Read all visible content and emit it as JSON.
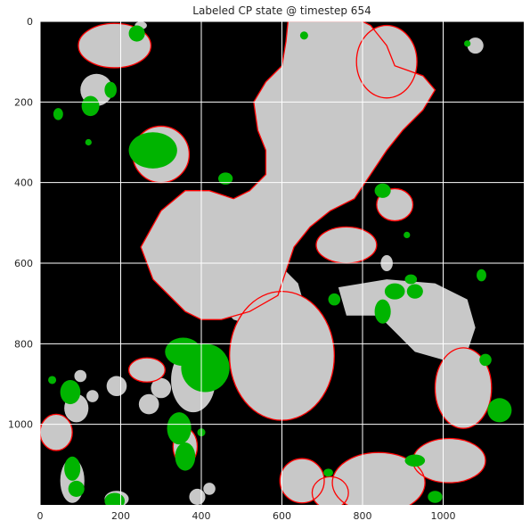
{
  "chart_data": {
    "type": "heatmap",
    "title": "Labeled CP state @ timestep 654",
    "xlabel": "",
    "ylabel": "",
    "xlim": [
      0,
      1200
    ],
    "ylim": [
      1200,
      0
    ],
    "y_inverted": true,
    "grid": true,
    "legend": "none",
    "x_ticks": [
      0,
      200,
      400,
      600,
      800,
      1000
    ],
    "y_ticks": [
      0,
      200,
      400,
      600,
      800,
      1000
    ],
    "classes": [
      {
        "name": "background",
        "color": "#000000"
      },
      {
        "name": "cold pool interior",
        "color": "#c8c8c8"
      },
      {
        "name": "cold pool boundary",
        "color": "#ff0000"
      },
      {
        "name": "new cold pool",
        "color": "#00b400"
      }
    ],
    "regions": [
      {
        "class": 1,
        "type": "poly",
        "points": [
          [
            615,
            0
          ],
          [
            800,
            0
          ],
          [
            820,
            10
          ],
          [
            860,
            60
          ],
          [
            880,
            110
          ],
          [
            950,
            135
          ],
          [
            980,
            170
          ],
          [
            950,
            220
          ],
          [
            900,
            270
          ],
          [
            860,
            320
          ],
          [
            820,
            380
          ],
          [
            780,
            440
          ],
          [
            720,
            470
          ],
          [
            670,
            510
          ],
          [
            630,
            560
          ],
          [
            610,
            620
          ],
          [
            590,
            680
          ],
          [
            520,
            720
          ],
          [
            450,
            740
          ],
          [
            400,
            740
          ],
          [
            360,
            720
          ],
          [
            280,
            640
          ],
          [
            250,
            560
          ],
          [
            300,
            470
          ],
          [
            360,
            420
          ],
          [
            420,
            420
          ],
          [
            480,
            440
          ],
          [
            520,
            420
          ],
          [
            560,
            380
          ],
          [
            560,
            320
          ],
          [
            540,
            270
          ],
          [
            530,
            200
          ],
          [
            560,
            150
          ],
          [
            600,
            110
          ],
          [
            610,
            50
          ]
        ]
      },
      {
        "class": 1,
        "type": "ellipse",
        "cx": 600,
        "cy": 830,
        "rx": 130,
        "ry": 160
      },
      {
        "class": 1,
        "type": "poly",
        "points": [
          [
            470,
            620
          ],
          [
            520,
            600
          ],
          [
            600,
            610
          ],
          [
            640,
            650
          ],
          [
            660,
            720
          ],
          [
            620,
            760
          ],
          [
            540,
            760
          ],
          [
            480,
            740
          ],
          [
            440,
            700
          ]
        ]
      },
      {
        "class": 1,
        "type": "poly",
        "points": [
          [
            740,
            660
          ],
          [
            860,
            640
          ],
          [
            980,
            650
          ],
          [
            1060,
            690
          ],
          [
            1080,
            760
          ],
          [
            1060,
            820
          ],
          [
            1000,
            840
          ],
          [
            930,
            820
          ],
          [
            880,
            770
          ],
          [
            840,
            730
          ],
          [
            760,
            730
          ]
        ]
      },
      {
        "class": 1,
        "type": "ellipse",
        "cx": 1050,
        "cy": 910,
        "rx": 70,
        "ry": 100
      },
      {
        "class": 1,
        "type": "ellipse",
        "cx": 860,
        "cy": 100,
        "rx": 75,
        "ry": 90
      },
      {
        "class": 1,
        "type": "ellipse",
        "cx": 760,
        "cy": 555,
        "rx": 75,
        "ry": 45
      },
      {
        "class": 1,
        "type": "ellipse",
        "cx": 880,
        "cy": 455,
        "rx": 45,
        "ry": 40
      },
      {
        "class": 1,
        "type": "ellipse",
        "cx": 300,
        "cy": 330,
        "rx": 70,
        "ry": 70
      },
      {
        "class": 1,
        "type": "ellipse",
        "cx": 185,
        "cy": 60,
        "rx": 90,
        "ry": 55
      },
      {
        "class": 1,
        "type": "ellipse",
        "cx": 140,
        "cy": 170,
        "rx": 40,
        "ry": 40
      },
      {
        "class": 1,
        "type": "ellipse",
        "cx": 1015,
        "cy": 1090,
        "rx": 90,
        "ry": 55
      },
      {
        "class": 1,
        "type": "ellipse",
        "cx": 840,
        "cy": 1145,
        "rx": 115,
        "ry": 75
      },
      {
        "class": 1,
        "type": "ellipse",
        "cx": 650,
        "cy": 1140,
        "rx": 55,
        "ry": 55
      },
      {
        "class": 1,
        "type": "ellipse",
        "cx": 720,
        "cy": 1170,
        "rx": 45,
        "ry": 40
      },
      {
        "class": 1,
        "type": "ellipse",
        "cx": 380,
        "cy": 890,
        "rx": 55,
        "ry": 80
      },
      {
        "class": 1,
        "type": "ellipse",
        "cx": 265,
        "cy": 865,
        "rx": 45,
        "ry": 30
      },
      {
        "class": 1,
        "type": "ellipse",
        "cx": 300,
        "cy": 910,
        "rx": 25,
        "ry": 25
      },
      {
        "class": 1,
        "type": "ellipse",
        "cx": 190,
        "cy": 905,
        "rx": 25,
        "ry": 25
      },
      {
        "class": 1,
        "type": "ellipse",
        "cx": 270,
        "cy": 950,
        "rx": 25,
        "ry": 25
      },
      {
        "class": 1,
        "type": "ellipse",
        "cx": 360,
        "cy": 1055,
        "rx": 30,
        "ry": 45
      },
      {
        "class": 1,
        "type": "ellipse",
        "cx": 40,
        "cy": 1020,
        "rx": 40,
        "ry": 45
      },
      {
        "class": 1,
        "type": "ellipse",
        "cx": 90,
        "cy": 960,
        "rx": 30,
        "ry": 35
      },
      {
        "class": 1,
        "type": "ellipse",
        "cx": 80,
        "cy": 1140,
        "rx": 30,
        "ry": 55
      },
      {
        "class": 1,
        "type": "ellipse",
        "cx": 190,
        "cy": 1185,
        "rx": 30,
        "ry": 20
      },
      {
        "class": 1,
        "type": "ellipse",
        "cx": 390,
        "cy": 1180,
        "rx": 20,
        "ry": 20
      },
      {
        "class": 1,
        "type": "ellipse",
        "cx": 420,
        "cy": 1160,
        "rx": 15,
        "ry": 15
      },
      {
        "class": 1,
        "type": "ellipse",
        "cx": 860,
        "cy": 600,
        "rx": 15,
        "ry": 20
      },
      {
        "class": 1,
        "type": "ellipse",
        "cx": 1080,
        "cy": 60,
        "rx": 20,
        "ry": 20
      },
      {
        "class": 1,
        "type": "ellipse",
        "cx": 250,
        "cy": 10,
        "rx": 15,
        "ry": 10
      },
      {
        "class": 1,
        "type": "ellipse",
        "cx": 100,
        "cy": 880,
        "rx": 15,
        "ry": 15
      },
      {
        "class": 1,
        "type": "ellipse",
        "cx": 130,
        "cy": 930,
        "rx": 15,
        "ry": 15
      },
      {
        "class": 2,
        "type": "poly-outline",
        "points": [
          [
            615,
            0
          ],
          [
            800,
            0
          ],
          [
            820,
            10
          ],
          [
            860,
            60
          ],
          [
            880,
            110
          ],
          [
            950,
            135
          ],
          [
            980,
            170
          ],
          [
            950,
            220
          ],
          [
            900,
            270
          ],
          [
            860,
            320
          ],
          [
            820,
            380
          ],
          [
            780,
            440
          ],
          [
            720,
            470
          ],
          [
            670,
            510
          ],
          [
            630,
            560
          ],
          [
            610,
            620
          ],
          [
            590,
            680
          ],
          [
            520,
            720
          ],
          [
            450,
            740
          ],
          [
            400,
            740
          ],
          [
            360,
            720
          ],
          [
            280,
            640
          ],
          [
            250,
            560
          ],
          [
            300,
            470
          ],
          [
            360,
            420
          ],
          [
            420,
            420
          ],
          [
            480,
            440
          ],
          [
            520,
            420
          ],
          [
            560,
            380
          ],
          [
            560,
            320
          ],
          [
            540,
            270
          ],
          [
            530,
            200
          ],
          [
            560,
            150
          ],
          [
            600,
            110
          ],
          [
            610,
            50
          ]
        ]
      },
      {
        "class": 2,
        "type": "ellipse-outline",
        "cx": 600,
        "cy": 830,
        "rx": 130,
        "ry": 160
      },
      {
        "class": 2,
        "type": "ellipse-outline",
        "cx": 1050,
        "cy": 910,
        "rx": 70,
        "ry": 100
      },
      {
        "class": 2,
        "type": "ellipse-outline",
        "cx": 860,
        "cy": 100,
        "rx": 75,
        "ry": 90
      },
      {
        "class": 2,
        "type": "ellipse-outline",
        "cx": 760,
        "cy": 555,
        "rx": 75,
        "ry": 45
      },
      {
        "class": 2,
        "type": "ellipse-outline",
        "cx": 880,
        "cy": 455,
        "rx": 45,
        "ry": 40
      },
      {
        "class": 2,
        "type": "ellipse-outline",
        "cx": 300,
        "cy": 330,
        "rx": 70,
        "ry": 70
      },
      {
        "class": 2,
        "type": "ellipse-outline",
        "cx": 185,
        "cy": 60,
        "rx": 90,
        "ry": 55
      },
      {
        "class": 2,
        "type": "ellipse-outline",
        "cx": 1015,
        "cy": 1090,
        "rx": 90,
        "ry": 55
      },
      {
        "class": 2,
        "type": "ellipse-outline",
        "cx": 840,
        "cy": 1145,
        "rx": 115,
        "ry": 75
      },
      {
        "class": 2,
        "type": "ellipse-outline",
        "cx": 650,
        "cy": 1140,
        "rx": 55,
        "ry": 55
      },
      {
        "class": 2,
        "type": "ellipse-outline",
        "cx": 265,
        "cy": 865,
        "rx": 45,
        "ry": 30
      },
      {
        "class": 2,
        "type": "ellipse-outline",
        "cx": 360,
        "cy": 1055,
        "rx": 30,
        "ry": 45
      },
      {
        "class": 2,
        "type": "ellipse-outline",
        "cx": 40,
        "cy": 1020,
        "rx": 40,
        "ry": 45
      },
      {
        "class": 2,
        "type": "ellipse-outline",
        "cx": 720,
        "cy": 1170,
        "rx": 45,
        "ry": 40
      },
      {
        "class": 3,
        "type": "ellipse",
        "cx": 280,
        "cy": 320,
        "rx": 60,
        "ry": 45
      },
      {
        "class": 3,
        "type": "ellipse",
        "cx": 355,
        "cy": 820,
        "rx": 45,
        "ry": 35
      },
      {
        "class": 3,
        "type": "ellipse",
        "cx": 410,
        "cy": 860,
        "rx": 60,
        "ry": 60
      },
      {
        "class": 3,
        "type": "ellipse",
        "cx": 345,
        "cy": 1010,
        "rx": 30,
        "ry": 40
      },
      {
        "class": 3,
        "type": "ellipse",
        "cx": 360,
        "cy": 1080,
        "rx": 25,
        "ry": 35
      },
      {
        "class": 3,
        "type": "ellipse",
        "cx": 75,
        "cy": 920,
        "rx": 25,
        "ry": 30
      },
      {
        "class": 3,
        "type": "ellipse",
        "cx": 80,
        "cy": 1110,
        "rx": 20,
        "ry": 30
      },
      {
        "class": 3,
        "type": "ellipse",
        "cx": 90,
        "cy": 1160,
        "rx": 20,
        "ry": 20
      },
      {
        "class": 3,
        "type": "ellipse",
        "cx": 185,
        "cy": 1190,
        "rx": 25,
        "ry": 20
      },
      {
        "class": 3,
        "type": "ellipse",
        "cx": 125,
        "cy": 210,
        "rx": 22,
        "ry": 25
      },
      {
        "class": 3,
        "type": "ellipse",
        "cx": 175,
        "cy": 170,
        "rx": 15,
        "ry": 20
      },
      {
        "class": 3,
        "type": "ellipse",
        "cx": 45,
        "cy": 230,
        "rx": 12,
        "ry": 15
      },
      {
        "class": 3,
        "type": "ellipse",
        "cx": 240,
        "cy": 30,
        "rx": 20,
        "ry": 20
      },
      {
        "class": 3,
        "type": "ellipse",
        "cx": 460,
        "cy": 390,
        "rx": 18,
        "ry": 15
      },
      {
        "class": 3,
        "type": "ellipse",
        "cx": 850,
        "cy": 420,
        "rx": 20,
        "ry": 18
      },
      {
        "class": 3,
        "type": "ellipse",
        "cx": 850,
        "cy": 720,
        "rx": 20,
        "ry": 30
      },
      {
        "class": 3,
        "type": "ellipse",
        "cx": 880,
        "cy": 670,
        "rx": 25,
        "ry": 20
      },
      {
        "class": 3,
        "type": "ellipse",
        "cx": 930,
        "cy": 670,
        "rx": 20,
        "ry": 18
      },
      {
        "class": 3,
        "type": "ellipse",
        "cx": 920,
        "cy": 640,
        "rx": 15,
        "ry": 12
      },
      {
        "class": 3,
        "type": "ellipse",
        "cx": 730,
        "cy": 690,
        "rx": 15,
        "ry": 15
      },
      {
        "class": 3,
        "type": "ellipse",
        "cx": 1140,
        "cy": 965,
        "rx": 30,
        "ry": 30
      },
      {
        "class": 3,
        "type": "ellipse",
        "cx": 1095,
        "cy": 630,
        "rx": 12,
        "ry": 15
      },
      {
        "class": 3,
        "type": "ellipse",
        "cx": 1105,
        "cy": 840,
        "rx": 15,
        "ry": 15
      },
      {
        "class": 3,
        "type": "ellipse",
        "cx": 980,
        "cy": 1180,
        "rx": 18,
        "ry": 15
      },
      {
        "class": 3,
        "type": "ellipse",
        "cx": 930,
        "cy": 1090,
        "rx": 25,
        "ry": 15
      },
      {
        "class": 3,
        "type": "ellipse",
        "cx": 715,
        "cy": 1120,
        "rx": 12,
        "ry": 10
      },
      {
        "class": 3,
        "type": "ellipse",
        "cx": 655,
        "cy": 35,
        "rx": 10,
        "ry": 10
      },
      {
        "class": 3,
        "type": "ellipse",
        "cx": 1060,
        "cy": 55,
        "rx": 8,
        "ry": 8
      },
      {
        "class": 3,
        "type": "ellipse",
        "cx": 910,
        "cy": 530,
        "rx": 8,
        "ry": 8
      },
      {
        "class": 3,
        "type": "ellipse",
        "cx": 120,
        "cy": 300,
        "rx": 8,
        "ry": 8
      },
      {
        "class": 3,
        "type": "ellipse",
        "cx": 30,
        "cy": 890,
        "rx": 10,
        "ry": 10
      },
      {
        "class": 3,
        "type": "ellipse",
        "cx": 400,
        "cy": 1020,
        "rx": 10,
        "ry": 10
      }
    ]
  }
}
